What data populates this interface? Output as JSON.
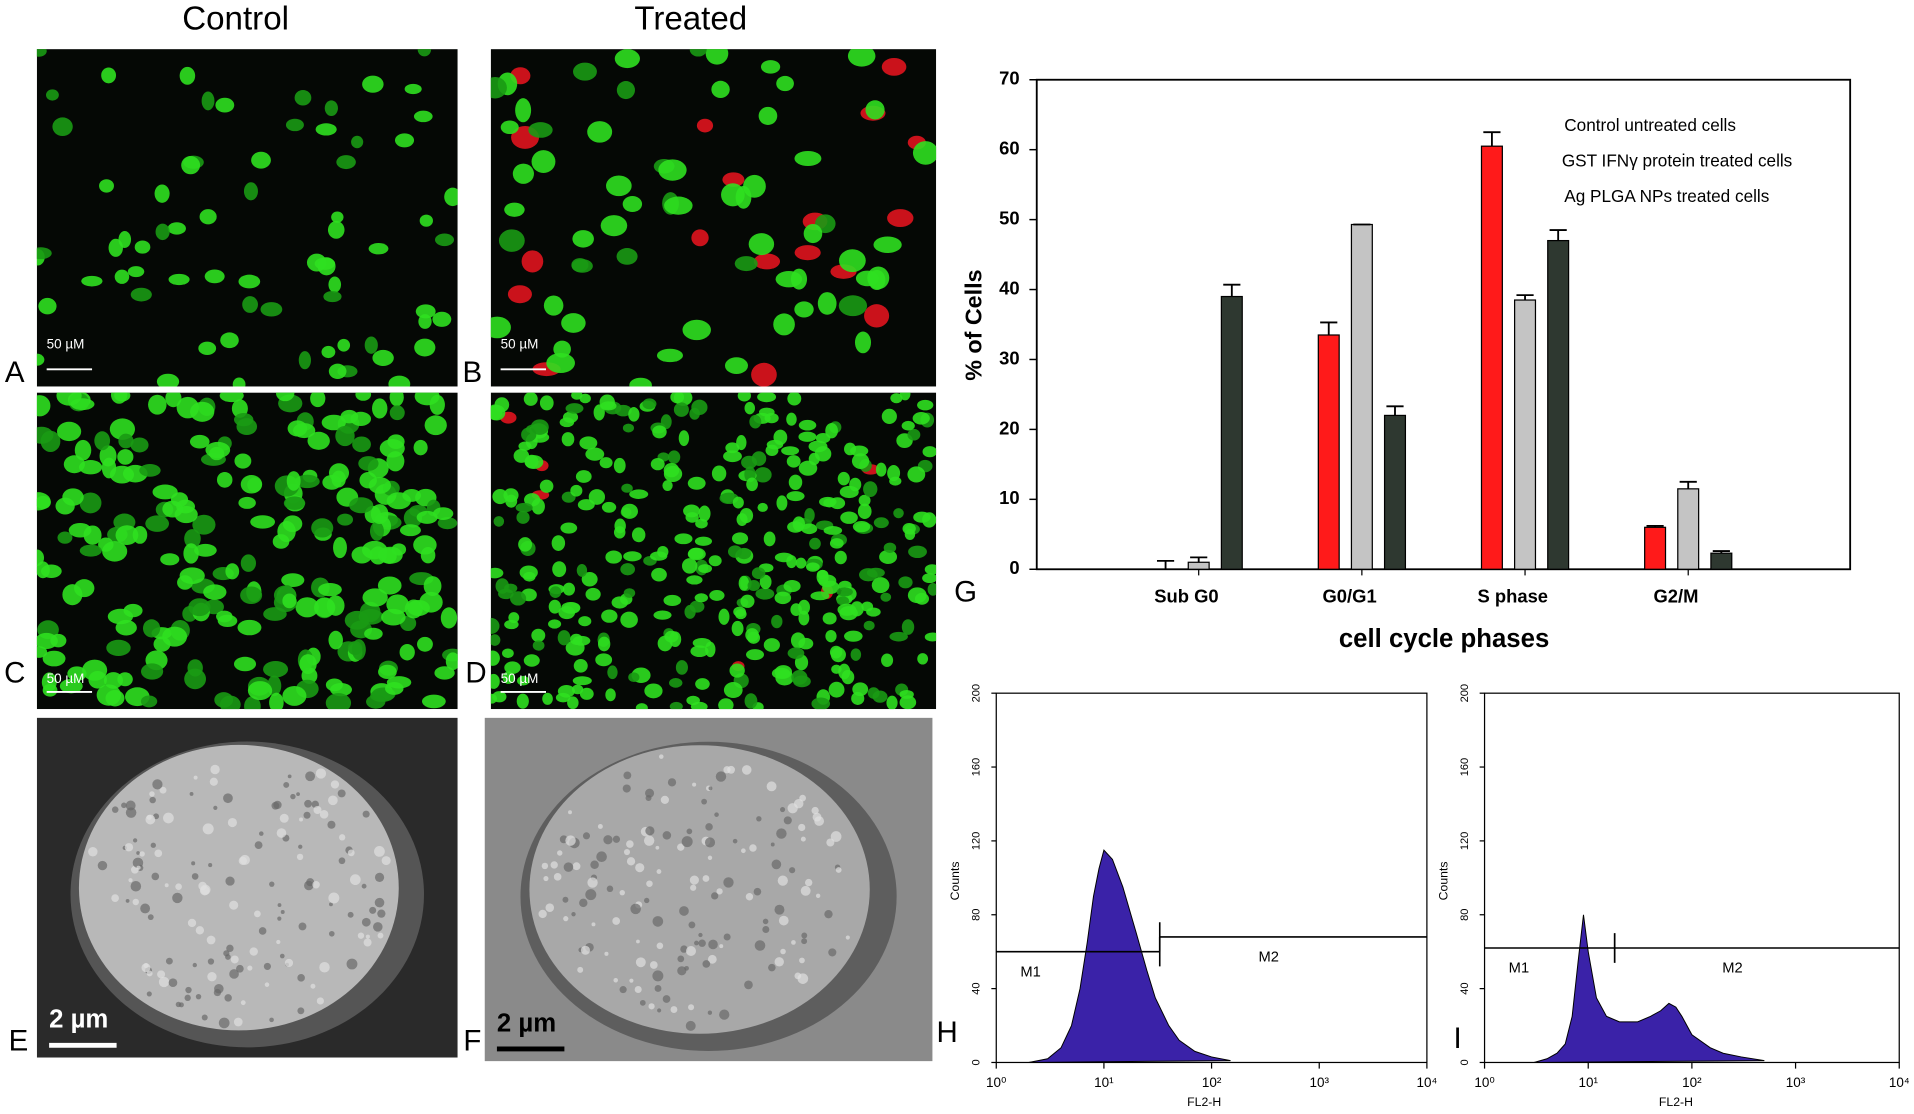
{
  "columns": [
    "Control",
    "Treated"
  ],
  "panels": [
    {
      "label": "A",
      "scale_bar": "50 µM"
    },
    {
      "label": "B",
      "scale_bar": "50 µM"
    },
    {
      "label": "C",
      "scale_bar": "50 µM"
    },
    {
      "label": "D",
      "scale_bar": "50 µM"
    },
    {
      "label": "E",
      "scale_bar": "2 µm"
    },
    {
      "label": "F",
      "scale_bar": "2 µm"
    }
  ],
  "chart_data": [
    {
      "type": "bar",
      "panel": "G",
      "categories": [
        "Sub G0",
        "G0/G1",
        "S phase",
        "G2/M"
      ],
      "series": [
        {
          "name": "Control untreated cells",
          "color": "#ff1a1a",
          "values": [
            0,
            33.5,
            60.5,
            6
          ],
          "errors": [
            1.2,
            1.8,
            2,
            0.2
          ]
        },
        {
          "name": "GST IFNγ protein treated cells",
          "color": "#c4c4c4",
          "values": [
            1,
            49.3,
            38.5,
            11.5
          ],
          "errors": [
            0.7,
            0,
            0.7,
            1
          ]
        },
        {
          "name": "Ag PLGA NPs treated cells",
          "color": "#2e3830",
          "values": [
            39,
            22,
            47,
            2.3
          ],
          "errors": [
            1.7,
            1.3,
            1.5,
            0.3
          ]
        }
      ],
      "ylabel": "% of Cells",
      "xlabel": "cell cycle phases",
      "ylim": [
        0,
        70
      ],
      "yticks": [
        0,
        10,
        20,
        30,
        40,
        50,
        60,
        70
      ],
      "legend": "upper right"
    },
    {
      "type": "histogram",
      "panel": "H",
      "color": "#3a22a8",
      "x": [
        2,
        3,
        4,
        5,
        6,
        7,
        8,
        9,
        10,
        12,
        15,
        20,
        25,
        30,
        40,
        50,
        70,
        100,
        150
      ],
      "values": [
        0,
        2,
        8,
        20,
        40,
        65,
        90,
        105,
        115,
        110,
        95,
        70,
        50,
        35,
        20,
        12,
        6,
        3,
        1
      ],
      "xlabel": "FL2-H",
      "ylabel": "Counts",
      "log_x": true,
      "xlim": [
        1,
        10000
      ],
      "xticks": [
        {
          "value": 1,
          "label": "10⁰"
        },
        {
          "value": 10,
          "label": "10¹"
        },
        {
          "value": 100,
          "label": "10²"
        },
        {
          "value": 1000,
          "label": "10³"
        },
        {
          "value": 10000,
          "label": "10⁴"
        }
      ],
      "ylim": [
        0,
        200
      ],
      "yticks": [
        0,
        40,
        80,
        120,
        160,
        200
      ],
      "markers": [
        {
          "label": "M1",
          "range": [
            1,
            33
          ],
          "level": 60
        },
        {
          "label": "M2",
          "range": [
            33,
            10000
          ],
          "level": 68
        }
      ]
    },
    {
      "type": "histogram",
      "panel": "I",
      "color": "#3a22a8",
      "x": [
        3,
        4,
        5,
        6,
        7,
        8,
        9,
        10,
        12,
        15,
        20,
        30,
        40,
        50,
        60,
        70,
        80,
        100,
        150,
        200,
        300,
        500
      ],
      "values": [
        0,
        2,
        5,
        10,
        25,
        55,
        80,
        60,
        35,
        25,
        22,
        22,
        25,
        28,
        32,
        30,
        25,
        15,
        8,
        5,
        3,
        1
      ],
      "xlabel": "FL2-H",
      "ylabel": "Counts",
      "log_x": true,
      "xlim": [
        1,
        10000
      ],
      "xticks": [
        {
          "value": 1,
          "label": "10⁰"
        },
        {
          "value": 10,
          "label": "10¹"
        },
        {
          "value": 100,
          "label": "10²"
        },
        {
          "value": 1000,
          "label": "10³"
        },
        {
          "value": 10000,
          "label": "10⁴"
        }
      ],
      "ylim": [
        0,
        200
      ],
      "yticks": [
        0,
        40,
        80,
        120,
        160,
        200
      ],
      "markers": [
        {
          "label": "M1",
          "range": [
            1,
            18
          ],
          "level": 62
        },
        {
          "label": "M2",
          "range": [
            18,
            10000
          ],
          "level": 62
        }
      ]
    }
  ]
}
